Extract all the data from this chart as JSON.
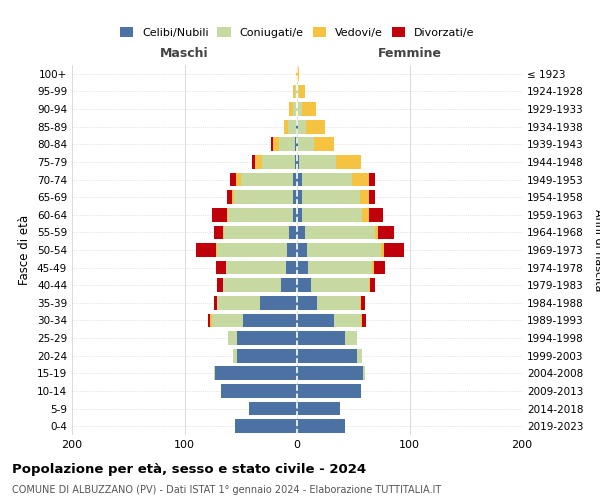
{
  "age_groups": [
    "0-4",
    "5-9",
    "10-14",
    "15-19",
    "20-24",
    "25-29",
    "30-34",
    "35-39",
    "40-44",
    "45-49",
    "50-54",
    "55-59",
    "60-64",
    "65-69",
    "70-74",
    "75-79",
    "80-84",
    "85-89",
    "90-94",
    "95-99",
    "100+"
  ],
  "birth_years": [
    "2019-2023",
    "2014-2018",
    "2009-2013",
    "2004-2008",
    "1999-2003",
    "1994-1998",
    "1989-1993",
    "1984-1988",
    "1979-1983",
    "1974-1978",
    "1969-1973",
    "1964-1968",
    "1959-1963",
    "1954-1958",
    "1949-1953",
    "1944-1948",
    "1939-1943",
    "1934-1938",
    "1929-1933",
    "1924-1928",
    "≤ 1923"
  ],
  "maschi": {
    "celibi": [
      55,
      43,
      68,
      73,
      53,
      53,
      48,
      33,
      14,
      10,
      9,
      7,
      4,
      4,
      4,
      2,
      2,
      1,
      0,
      0,
      0
    ],
    "coniugati": [
      0,
      0,
      0,
      1,
      4,
      8,
      28,
      38,
      52,
      53,
      62,
      58,
      57,
      52,
      46,
      29,
      14,
      7,
      4,
      2,
      0
    ],
    "vedovi": [
      0,
      0,
      0,
      0,
      0,
      0,
      1,
      0,
      0,
      0,
      1,
      1,
      1,
      2,
      4,
      6,
      5,
      4,
      3,
      2,
      1
    ],
    "divorziati": [
      0,
      0,
      0,
      0,
      0,
      0,
      2,
      3,
      5,
      9,
      18,
      8,
      14,
      4,
      6,
      3,
      2,
      0,
      0,
      0,
      0
    ]
  },
  "femmine": {
    "nubili": [
      43,
      38,
      57,
      59,
      53,
      43,
      33,
      18,
      12,
      10,
      9,
      7,
      4,
      4,
      4,
      2,
      1,
      1,
      0,
      0,
      0
    ],
    "coniugate": [
      0,
      0,
      0,
      1,
      5,
      10,
      24,
      38,
      52,
      57,
      66,
      62,
      54,
      52,
      45,
      33,
      14,
      7,
      4,
      2,
      0
    ],
    "vedove": [
      0,
      0,
      0,
      0,
      0,
      0,
      1,
      1,
      1,
      1,
      2,
      3,
      6,
      8,
      15,
      22,
      18,
      17,
      13,
      5,
      2
    ],
    "divorziate": [
      0,
      0,
      0,
      0,
      0,
      0,
      3,
      3,
      4,
      10,
      18,
      14,
      12,
      5,
      5,
      0,
      0,
      0,
      0,
      0,
      0
    ]
  },
  "colors": {
    "celibi_nubili": "#4c72a4",
    "coniugati": "#c5d9a0",
    "vedovi": "#f5c242",
    "divorziati": "#c0000b"
  },
  "xlim": 200,
  "title": "Popolazione per età, sesso e stato civile - 2024",
  "subtitle": "COMUNE DI ALBUZZANO (PV) - Dati ISTAT 1° gennaio 2024 - Elaborazione TUTTITALIA.IT",
  "ylabel_left": "Fasce di età",
  "ylabel_right": "Anni di nascita",
  "xlabel_left": "Maschi",
  "xlabel_right": "Femmine"
}
